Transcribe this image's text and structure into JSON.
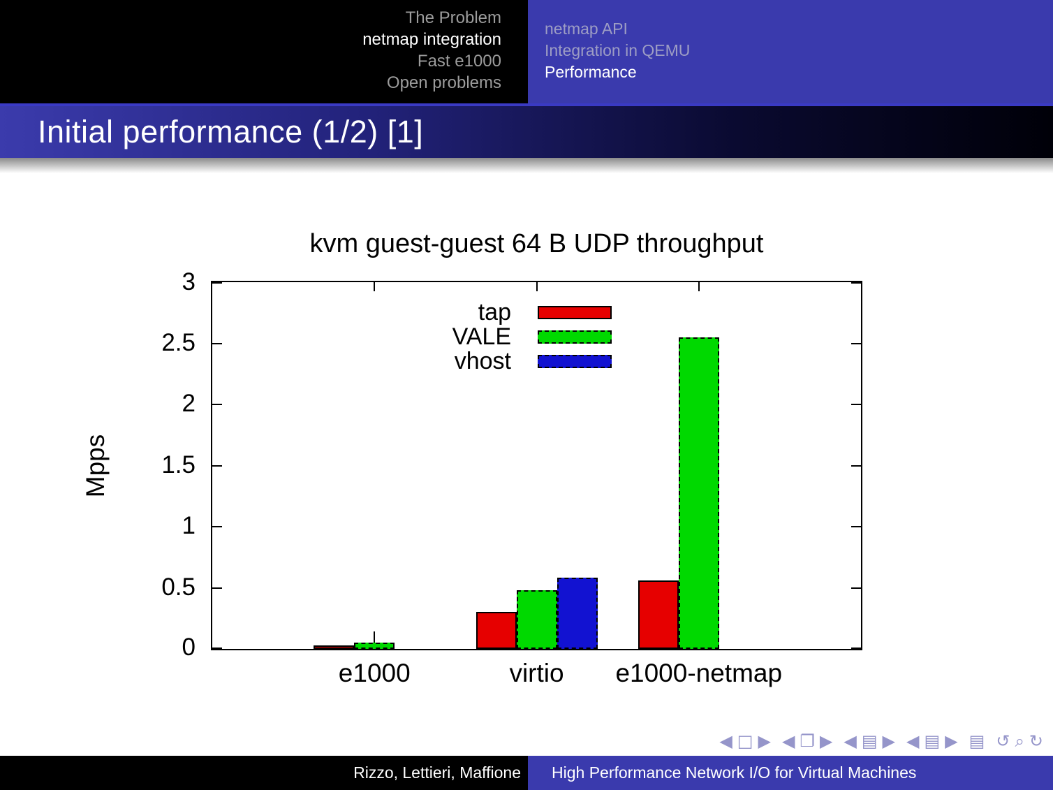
{
  "header": {
    "sections": [
      {
        "label": "The Problem",
        "active": false
      },
      {
        "label": "netmap integration",
        "active": true
      },
      {
        "label": "Fast e1000",
        "active": false
      },
      {
        "label": "Open problems",
        "active": false
      }
    ],
    "subsections": [
      {
        "label": "netmap API",
        "active": false
      },
      {
        "label": "Integration in QEMU",
        "active": false
      },
      {
        "label": "Performance",
        "active": true
      }
    ]
  },
  "title": "Initial performance (1/2) [1]",
  "footer": {
    "authors": "Rizzo, Lettieri, Maffione",
    "presentation_title": "High Performance Network I/O for Virtual Machines"
  },
  "nav_symbols": [
    {
      "items": [
        {
          "name": "prev-slide",
          "glyph": "◀"
        },
        {
          "name": "slide",
          "glyph": "□"
        },
        {
          "name": "next-slide",
          "glyph": "▶"
        }
      ]
    },
    {
      "items": [
        {
          "name": "prev-frame",
          "glyph": "◀"
        },
        {
          "name": "frames",
          "glyph": "❐"
        },
        {
          "name": "next-frame",
          "glyph": "▶"
        }
      ]
    },
    {
      "items": [
        {
          "name": "prev-section",
          "glyph": "◀"
        },
        {
          "name": "section",
          "glyph": "▤"
        },
        {
          "name": "next-section",
          "glyph": "▶"
        }
      ]
    },
    {
      "items": [
        {
          "name": "prev-subsection",
          "glyph": "◀"
        },
        {
          "name": "subsection",
          "glyph": "▤"
        },
        {
          "name": "next-subsection",
          "glyph": "▶"
        }
      ]
    },
    {
      "items": [
        {
          "name": "appendix",
          "glyph": "▤"
        }
      ]
    },
    {
      "items": [
        {
          "name": "back",
          "glyph": "↺"
        },
        {
          "name": "search",
          "glyph": "⌕"
        },
        {
          "name": "forward",
          "glyph": "↻"
        }
      ]
    }
  ],
  "colors": {
    "accent_blue": "#3a3aad",
    "nav_symbols": "#9595ca"
  },
  "chart_data": {
    "type": "bar",
    "title": "kvm guest-guest 64 B UDP throughput",
    "ylabel": "Mpps",
    "ylim": [
      0,
      3
    ],
    "ytick_step": 0.5,
    "yticks": [
      "0",
      "0.5",
      "1",
      "1.5",
      "2",
      "2.5",
      "3"
    ],
    "categories": [
      "e1000",
      "virtio",
      "e1000-netmap"
    ],
    "series": [
      {
        "name": "tap",
        "color": "#e60000",
        "border": "solid",
        "values": [
          0.03,
          0.3,
          0.56
        ]
      },
      {
        "name": "VALE",
        "color": "#00d900",
        "border": "dashed",
        "values": [
          0.05,
          0.48,
          2.55
        ]
      },
      {
        "name": "vhost",
        "color": "#1212d1",
        "border": "dashed",
        "values": [
          null,
          0.58,
          null
        ]
      }
    ],
    "error_bars": [
      {
        "series": "VALE",
        "category": "e1000",
        "high": 0.14
      }
    ],
    "legend_position": "inside-top-center",
    "grid": false
  }
}
